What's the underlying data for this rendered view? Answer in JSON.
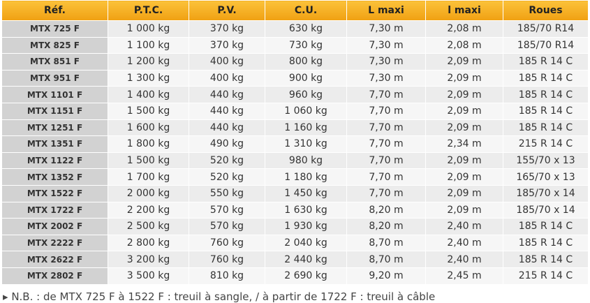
{
  "table": {
    "headers": [
      "Réf.",
      "P.T.C.",
      "P.V.",
      "C.U.",
      "L maxi",
      "l maxi",
      "Roues"
    ],
    "rows": [
      [
        "MTX 725 F",
        "1 000 kg",
        "370 kg",
        "630 kg",
        "7,30 m",
        "2,08 m",
        "185/70 R14"
      ],
      [
        "MTX 825 F",
        "1 100 kg",
        "370 kg",
        "730 kg",
        "7,30 m",
        "2,08 m",
        "185/70 R14"
      ],
      [
        "MTX 851 F",
        "1 200 kg",
        "400 kg",
        "800 kg",
        "7,30 m",
        "2,09 m",
        "185 R 14 C"
      ],
      [
        "MTX 951 F",
        "1 300 kg",
        "400 kg",
        "900 kg",
        "7,30 m",
        "2,09 m",
        "185 R 14 C"
      ],
      [
        "MTX 1101 F",
        "1 400 kg",
        "440 kg",
        "960 kg",
        "7,70 m",
        "2,09 m",
        "185 R 14 C"
      ],
      [
        "MTX 1151 F",
        "1 500 kg",
        "440 kg",
        "1 060 kg",
        "7,70 m",
        "2,09 m",
        "185 R 14 C"
      ],
      [
        "MTX 1251 F",
        "1 600 kg",
        "440 kg",
        "1 160 kg",
        "7,70 m",
        "2,09 m",
        "185 R 14 C"
      ],
      [
        "MTX 1351 F",
        "1 800 kg",
        "490 kg",
        "1 310 kg",
        "7,70 m",
        "2,34 m",
        "215 R 14 C"
      ],
      [
        "MTX 1122 F",
        "1 500 kg",
        "520 kg",
        "980 kg",
        "7,70 m",
        "2,09 m",
        "155/70 x 13"
      ],
      [
        "MTX 1352 F",
        "1 700 kg",
        "520 kg",
        "1 180 kg",
        "7,70 m",
        "2,09 m",
        "165/70 x 13"
      ],
      [
        "MTX 1522 F",
        "2 000 kg",
        "550 kg",
        "1 450 kg",
        "7,70 m",
        "2,09 m",
        "185/70 x 14"
      ],
      [
        "MTX 1722 F",
        "2 200 kg",
        "570 kg",
        "1 630 kg",
        "8,20 m",
        "2,09 m",
        "185/70 x 14"
      ],
      [
        "MTX 2002 F",
        "2 500 kg",
        "570 kg",
        "1 930 kg",
        "8,20 m",
        "2,40 m",
        "185 R 14 C"
      ],
      [
        "MTX 2222 F",
        "2 800 kg",
        "760 kg",
        "2 040 kg",
        "8,70 m",
        "2,40 m",
        "185 R 14 C"
      ],
      [
        "MTX 2622 F",
        "3 200 kg",
        "760 kg",
        "2 440 kg",
        "8,70 m",
        "2,40 m",
        "185 R 14 C"
      ],
      [
        "MTX 2802 F",
        "3 500 kg",
        "810 kg",
        "2 690 kg",
        "9,20 m",
        "2,45 m",
        "215 R 14 C"
      ]
    ]
  },
  "footnote": "N.B. : de MTX 725 F à 1522 F : treuil à sangle, / à partir de 1722 F : treuil à câble"
}
